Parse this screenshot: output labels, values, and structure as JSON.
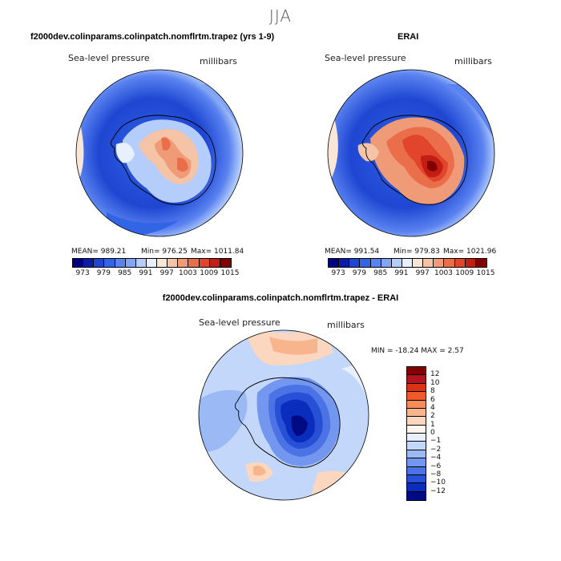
{
  "season": "JJA",
  "panels": {
    "model": {
      "title": "f2000dev.colinparams.colinpatch.nomflrtm.trapez (yrs 1-9)",
      "variable": "Sea-level pressure",
      "units": "millibars",
      "mean_text": "MEAN= 989.21",
      "min_text": "Min= 976.25",
      "max_text": "Max= 1011.84"
    },
    "obs": {
      "title": "ERAI",
      "variable": "Sea-level pressure",
      "units": "millibars",
      "mean_text": "MEAN= 991.54",
      "min_text": "Min= 979.83",
      "max_text": "Max= 1021.96"
    },
    "diff": {
      "title": "f2000dev.colinparams.colinpatch.nomflrtm.trapez - ERAI",
      "variable": "Sea-level pressure",
      "units": "millibars",
      "minmax_text": "MIN = -18.24 MAX =   2.57"
    }
  },
  "abs_colorbar": {
    "colors": [
      "#00007f",
      "#0a1ca8",
      "#1e46d2",
      "#3264e6",
      "#5a82f0",
      "#82a5f5",
      "#b4cdfa",
      "#e6f0ff",
      "#fae6d7",
      "#f5c3a5",
      "#f09b78",
      "#eb6e4b",
      "#e1462d",
      "#c31e14",
      "#820000"
    ],
    "tick_labels": [
      "973",
      "979",
      "985",
      "991",
      "997",
      "1003",
      "1009",
      "1015"
    ]
  },
  "diff_colorbar": {
    "colors": [
      "#820000",
      "#b4141e",
      "#dc3214",
      "#f05a28",
      "#f58c5a",
      "#f8b48c",
      "#fad7be",
      "#fff5ec",
      "#e6f0ff",
      "#c3d7fa",
      "#9bbaf5",
      "#7396ef",
      "#4b73e6",
      "#2850d7",
      "#0a2dbe",
      "#000a82"
    ],
    "tick_labels": [
      "12",
      "10",
      "8",
      "6",
      "4",
      "2",
      "1",
      "0",
      "−1",
      "−2",
      "−4",
      "−6",
      "−8",
      "−10",
      "−12"
    ]
  }
}
